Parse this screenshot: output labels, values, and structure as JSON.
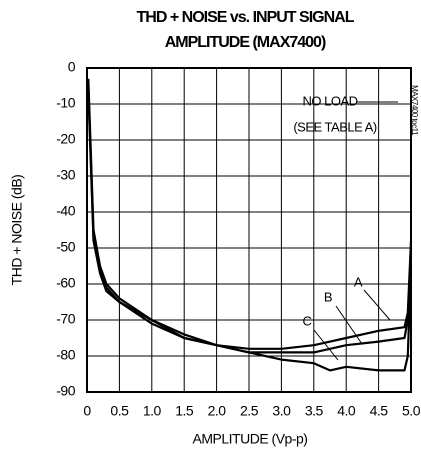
{
  "chart_data": {
    "type": "line",
    "title": [
      "THD + NOISE vs. INPUT SIGNAL",
      "AMPLITUDE (MAX7400)"
    ],
    "x_label": "AMPLITUDE (Vp-p)",
    "y_label": "THD + NOISE (dB)",
    "annotations": [
      "NO LOAD",
      "(SEE TABLE A)",
      "MAX7400 toc11"
    ],
    "xlim": [
      0,
      5
    ],
    "ylim": [
      -90,
      0
    ],
    "xticks": [
      0,
      0.5,
      {
        "value": 1,
        "label": "1.0"
      },
      1.5,
      {
        "value": 2,
        "label": "2.0"
      },
      2.5,
      {
        "value": 3,
        "label": "3.0"
      },
      3.5,
      {
        "value": 4,
        "label": "4.0"
      },
      4.5,
      {
        "value": 5,
        "label": "5.0"
      }
    ],
    "yticks": [
      0,
      -10,
      -20,
      -30,
      -40,
      -50,
      -60,
      -70,
      -80,
      -90
    ],
    "grid": true,
    "series": [
      {
        "name": "A",
        "color": "#000000",
        "x": [
          0.02,
          0.1,
          0.2,
          0.3,
          0.5,
          1.0,
          1.5,
          2.0,
          2.5,
          3.0,
          3.5,
          4.0,
          4.5,
          4.9,
          4.95,
          5.0
        ],
        "values": [
          -3,
          -45,
          -55,
          -60,
          -64,
          -70,
          -74,
          -77,
          -78,
          -78,
          -77,
          -75,
          -73,
          -72,
          -68,
          -48
        ]
      },
      {
        "name": "B",
        "color": "#000000",
        "x": [
          0.02,
          0.1,
          0.2,
          0.3,
          0.5,
          1.0,
          1.5,
          2.0,
          2.5,
          3.0,
          3.5,
          4.0,
          4.5,
          4.9,
          4.95,
          5.0
        ],
        "values": [
          -5,
          -47,
          -56,
          -61,
          -65,
          -70,
          -75,
          -77,
          -79,
          -79,
          -79,
          -77,
          -76,
          -75,
          -70,
          -50
        ]
      },
      {
        "name": "C",
        "color": "#000000",
        "x": [
          0.02,
          0.1,
          0.2,
          0.3,
          0.5,
          1.0,
          1.5,
          2.0,
          2.5,
          3.0,
          3.5,
          3.75,
          4.0,
          4.5,
          4.9,
          4.95,
          5.0
        ],
        "values": [
          -6,
          -48,
          -57,
          -62,
          -65,
          -71,
          -75,
          -77,
          -79,
          -81,
          -82,
          -84,
          -83,
          -84,
          -84,
          -80,
          -55
        ]
      }
    ]
  }
}
